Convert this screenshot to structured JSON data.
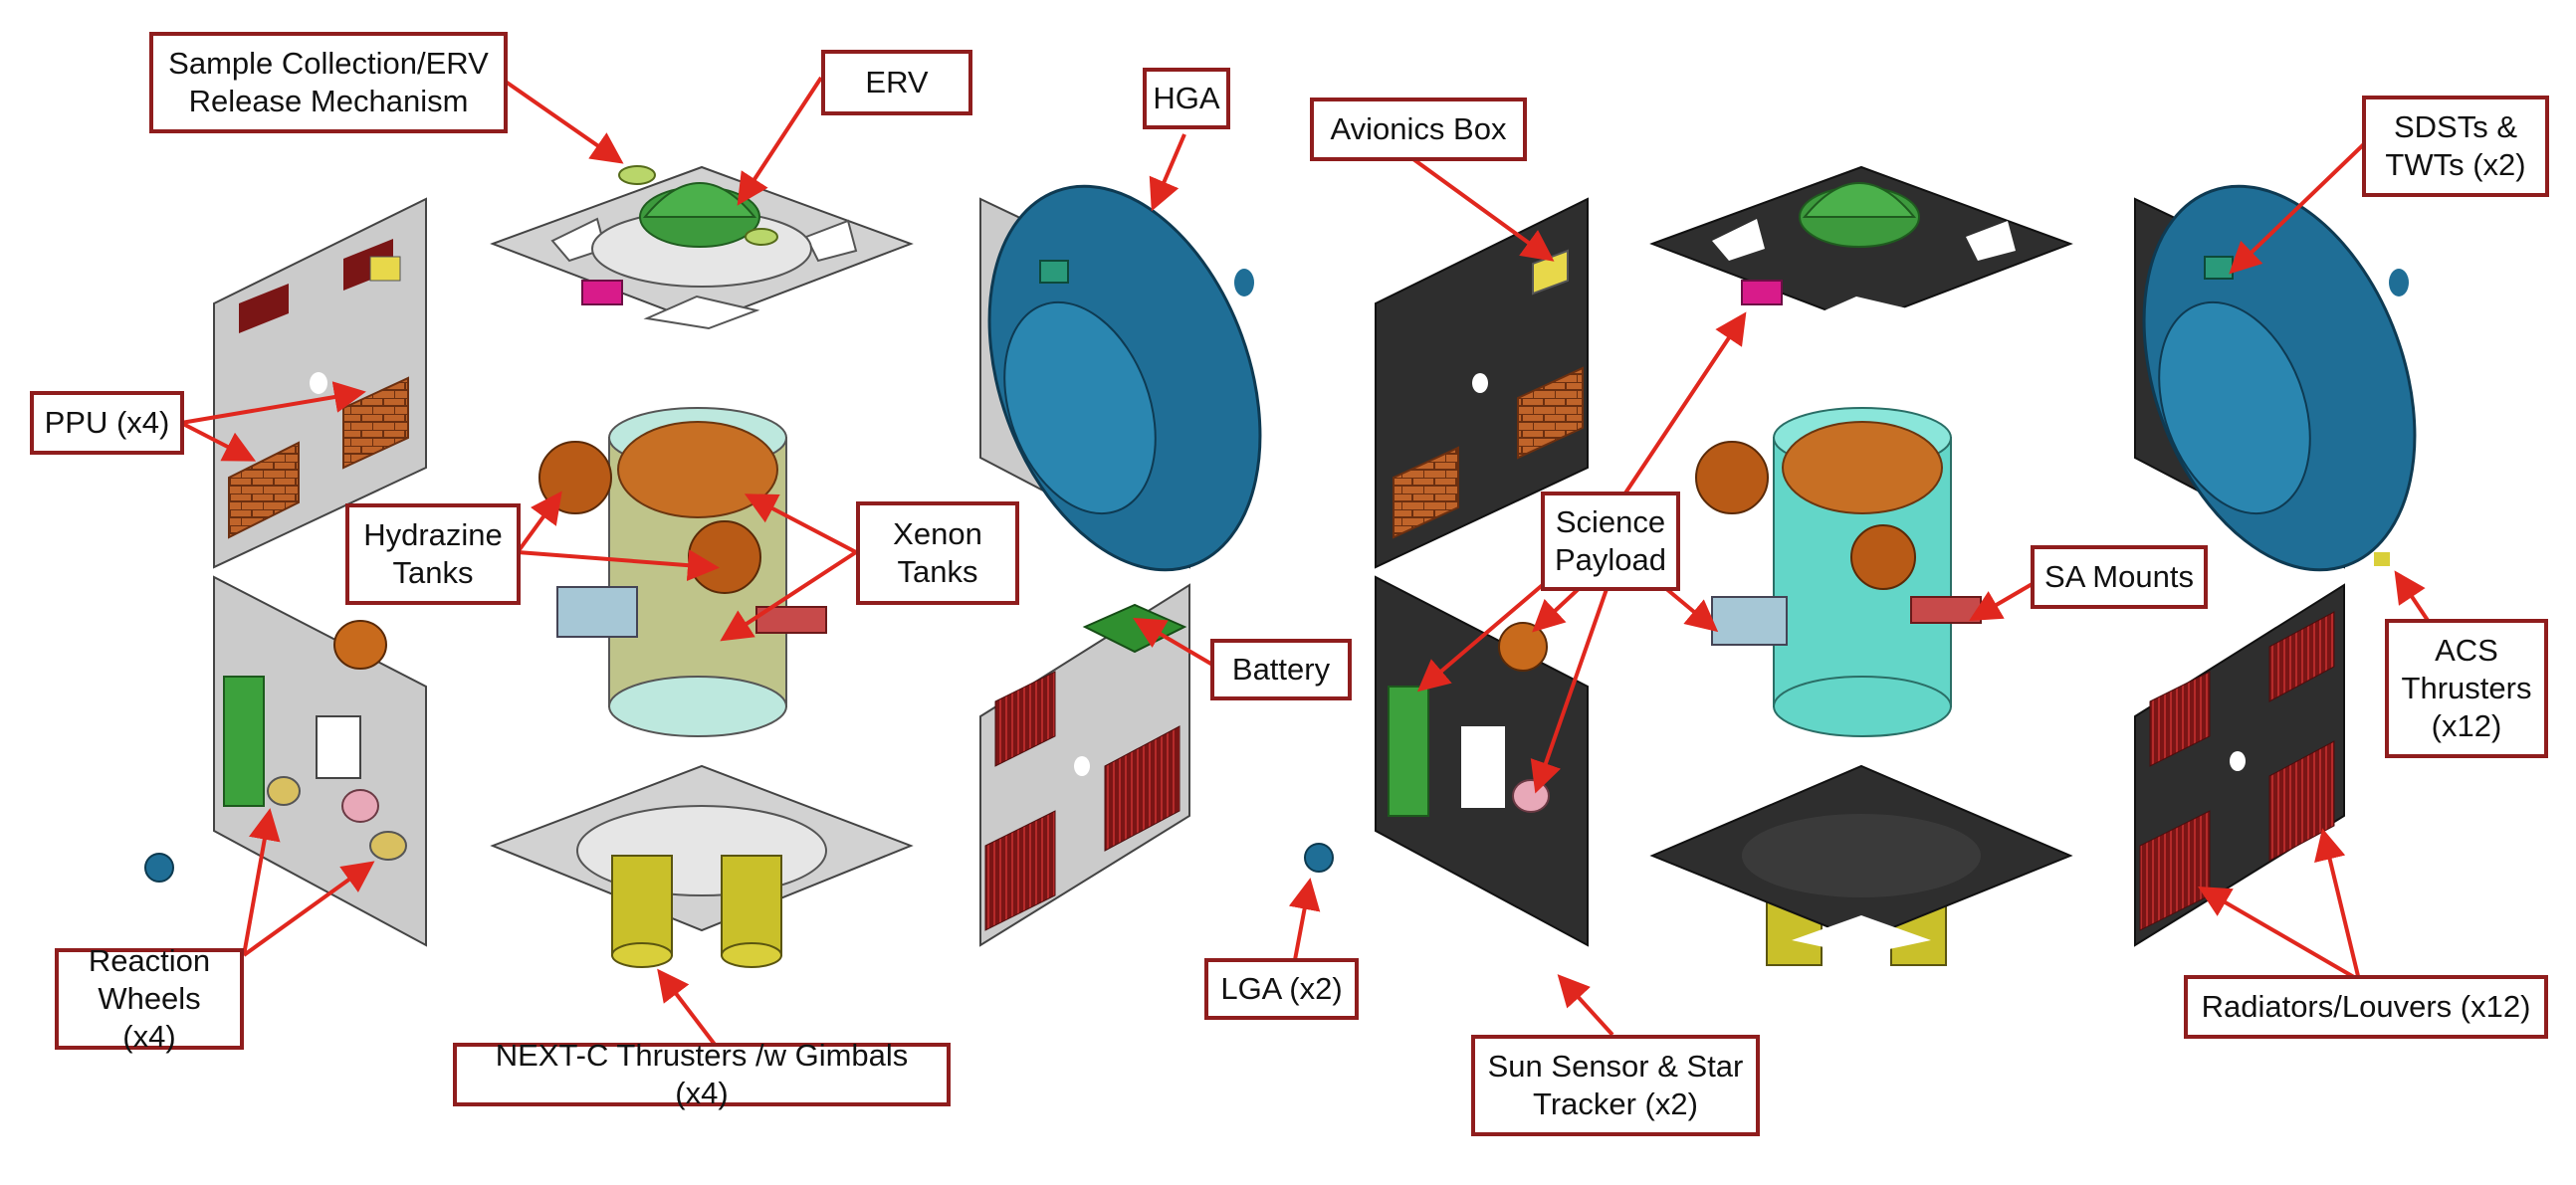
{
  "labels": {
    "sample_collection": "Sample Collection/ERV\nRelease Mechanism",
    "erv": "ERV",
    "hga": "HGA",
    "avionics_box": "Avionics Box",
    "sdsts_twts": "SDSTs &\nTWTs (x2)",
    "ppu": "PPU (x4)",
    "hydrazine_tanks": "Hydrazine\nTanks",
    "xenon_tanks": "Xenon\nTanks",
    "science_payload": "Science\nPayload",
    "sa_mounts": "SA Mounts",
    "battery": "Battery",
    "acs_thrusters": "ACS\nThrusters\n(x12)",
    "reaction_wheels": "Reaction\nWheels (x4)",
    "next_c": "NEXT-C Thrusters /w Gimbals (x4)",
    "lga": "LGA (x2)",
    "sun_sensor": "Sun Sensor & Star\nTracker (x2)",
    "radiators": "Radiators/Louvers (x12)"
  },
  "colors": {
    "callout_border": "#8f1d1d",
    "arrow": "#e0271e",
    "panel_light": "#cbcbcb",
    "panel_dark": "#2e2e2e",
    "hga_blue": "#1f6e96",
    "tank_cyan": "#63d6c8",
    "xenon_copper": "#b55c16",
    "ppu_brick": "#b45a23",
    "radiator_red": "#8a1c1c",
    "battery_green": "#2f8f2f"
  }
}
